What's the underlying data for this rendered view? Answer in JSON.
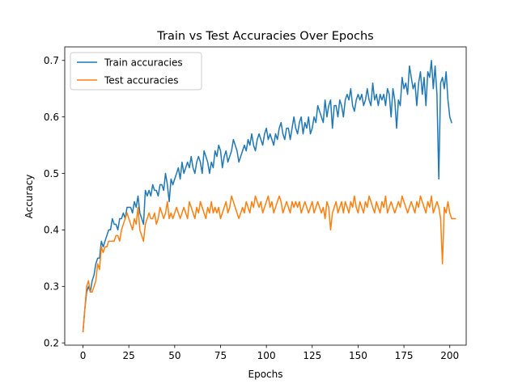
{
  "chart_data": {
    "type": "line",
    "title": "Train vs Test Accuracies Over Epochs",
    "xlabel": "Epochs",
    "ylabel": "Accuracy",
    "xlim": [
      -9.95,
      208.95
    ],
    "ylim": [
      0.196,
      0.724
    ],
    "xticks": [
      0,
      25,
      50,
      75,
      100,
      125,
      150,
      175,
      200
    ],
    "yticks": [
      0.2,
      0.3,
      0.4,
      0.5,
      0.6,
      0.7
    ],
    "grid": false,
    "legend_position": "top-left",
    "series": [
      {
        "name": "Train accuracies",
        "color": "#1f77b4",
        "x_start": 0,
        "x_step": 1,
        "values": [
          0.22,
          0.26,
          0.29,
          0.3,
          0.29,
          0.31,
          0.32,
          0.34,
          0.35,
          0.35,
          0.38,
          0.37,
          0.38,
          0.39,
          0.4,
          0.4,
          0.42,
          0.41,
          0.41,
          0.4,
          0.42,
          0.42,
          0.43,
          0.42,
          0.44,
          0.44,
          0.44,
          0.43,
          0.45,
          0.44,
          0.46,
          0.43,
          0.42,
          0.41,
          0.47,
          0.46,
          0.47,
          0.46,
          0.48,
          0.47,
          0.47,
          0.46,
          0.48,
          0.48,
          0.47,
          0.5,
          0.48,
          0.45,
          0.49,
          0.48,
          0.49,
          0.5,
          0.51,
          0.49,
          0.52,
          0.5,
          0.51,
          0.52,
          0.51,
          0.53,
          0.51,
          0.5,
          0.52,
          0.53,
          0.52,
          0.5,
          0.54,
          0.53,
          0.52,
          0.5,
          0.52,
          0.51,
          0.54,
          0.53,
          0.55,
          0.54,
          0.51,
          0.53,
          0.54,
          0.52,
          0.53,
          0.54,
          0.56,
          0.55,
          0.54,
          0.52,
          0.53,
          0.54,
          0.55,
          0.54,
          0.56,
          0.55,
          0.57,
          0.55,
          0.54,
          0.56,
          0.57,
          0.56,
          0.55,
          0.57,
          0.58,
          0.56,
          0.57,
          0.56,
          0.55,
          0.57,
          0.56,
          0.58,
          0.59,
          0.57,
          0.56,
          0.58,
          0.58,
          0.56,
          0.58,
          0.6,
          0.58,
          0.57,
          0.59,
          0.6,
          0.57,
          0.59,
          0.58,
          0.6,
          0.57,
          0.58,
          0.6,
          0.59,
          0.62,
          0.61,
          0.6,
          0.59,
          0.63,
          0.6,
          0.62,
          0.63,
          0.58,
          0.62,
          0.62,
          0.6,
          0.63,
          0.62,
          0.6,
          0.63,
          0.64,
          0.63,
          0.65,
          0.62,
          0.61,
          0.63,
          0.64,
          0.63,
          0.64,
          0.62,
          0.63,
          0.65,
          0.63,
          0.62,
          0.66,
          0.63,
          0.64,
          0.62,
          0.64,
          0.63,
          0.64,
          0.62,
          0.65,
          0.64,
          0.6,
          0.65,
          0.63,
          0.58,
          0.63,
          0.62,
          0.67,
          0.65,
          0.66,
          0.64,
          0.69,
          0.67,
          0.65,
          0.66,
          0.62,
          0.66,
          0.68,
          0.64,
          0.67,
          0.62,
          0.68,
          0.67,
          0.7,
          0.65,
          0.69,
          0.64,
          0.49,
          0.66,
          0.67,
          0.65,
          0.68,
          0.63,
          0.6,
          0.59
        ]
      },
      {
        "name": "Test accuracies",
        "color": "#ff7f0e",
        "x_start": 0,
        "x_step": 1,
        "values": [
          0.22,
          0.26,
          0.3,
          0.31,
          0.29,
          0.29,
          0.3,
          0.31,
          0.34,
          0.33,
          0.37,
          0.36,
          0.37,
          0.37,
          0.38,
          0.38,
          0.38,
          0.38,
          0.39,
          0.39,
          0.38,
          0.4,
          0.41,
          0.42,
          0.43,
          0.42,
          0.41,
          0.4,
          0.42,
          0.41,
          0.44,
          0.4,
          0.39,
          0.38,
          0.41,
          0.42,
          0.43,
          0.42,
          0.42,
          0.43,
          0.41,
          0.42,
          0.44,
          0.43,
          0.42,
          0.43,
          0.45,
          0.42,
          0.43,
          0.42,
          0.43,
          0.44,
          0.43,
          0.42,
          0.43,
          0.44,
          0.43,
          0.42,
          0.45,
          0.44,
          0.43,
          0.42,
          0.44,
          0.43,
          0.45,
          0.44,
          0.43,
          0.42,
          0.44,
          0.43,
          0.45,
          0.43,
          0.44,
          0.43,
          0.44,
          0.42,
          0.43,
          0.44,
          0.45,
          0.43,
          0.44,
          0.46,
          0.45,
          0.44,
          0.43,
          0.42,
          0.43,
          0.44,
          0.43,
          0.45,
          0.44,
          0.43,
          0.45,
          0.44,
          0.46,
          0.45,
          0.44,
          0.45,
          0.43,
          0.44,
          0.45,
          0.46,
          0.44,
          0.45,
          0.43,
          0.44,
          0.45,
          0.46,
          0.45,
          0.43,
          0.44,
          0.45,
          0.44,
          0.43,
          0.45,
          0.44,
          0.45,
          0.44,
          0.45,
          0.43,
          0.44,
          0.45,
          0.44,
          0.43,
          0.44,
          0.45,
          0.43,
          0.44,
          0.45,
          0.44,
          0.43,
          0.44,
          0.42,
          0.45,
          0.44,
          0.4,
          0.43,
          0.44,
          0.45,
          0.43,
          0.44,
          0.45,
          0.43,
          0.45,
          0.44,
          0.43,
          0.45,
          0.44,
          0.46,
          0.44,
          0.43,
          0.45,
          0.44,
          0.43,
          0.45,
          0.44,
          0.46,
          0.45,
          0.44,
          0.43,
          0.45,
          0.44,
          0.43,
          0.45,
          0.44,
          0.46,
          0.43,
          0.44,
          0.45,
          0.44,
          0.43,
          0.44,
          0.45,
          0.44,
          0.46,
          0.45,
          0.44,
          0.43,
          0.44,
          0.45,
          0.44,
          0.43,
          0.45,
          0.44,
          0.46,
          0.45,
          0.44,
          0.43,
          0.45,
          0.44,
          0.46,
          0.43,
          0.44,
          0.45,
          0.44,
          0.42,
          0.34,
          0.44,
          0.43,
          0.45,
          0.43,
          0.42,
          0.42,
          0.42
        ]
      }
    ]
  }
}
